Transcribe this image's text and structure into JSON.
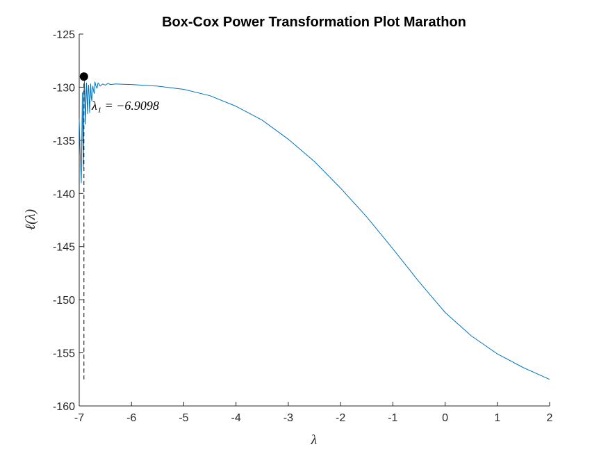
{
  "chart_data": {
    "type": "line",
    "title": "Box-Cox Power Transformation Plot Marathon",
    "xlabel": "λ",
    "ylabel": "ℓ(λ)",
    "xlim": [
      -7,
      2
    ],
    "ylim": [
      -160,
      -125
    ],
    "xticks": [
      -7,
      -6,
      -5,
      -4,
      -3,
      -2,
      -1,
      0,
      1,
      2
    ],
    "yticks": [
      -160,
      -155,
      -150,
      -145,
      -140,
      -135,
      -130,
      -125
    ],
    "xtick_labels": [
      "-7",
      "-6",
      "-5",
      "-4",
      "-3",
      "-2",
      "-1",
      "0",
      "1",
      "2"
    ],
    "ytick_labels": [
      "-160",
      "-155",
      "-150",
      "-145",
      "-140",
      "-135",
      "-130",
      "-125"
    ],
    "grid": false,
    "series": [
      {
        "color": "#0072BD",
        "x": [
          -7.0,
          -6.98,
          -6.96,
          -6.95,
          -6.94,
          -6.93,
          -6.92,
          -6.91,
          -6.9,
          -6.89,
          -6.88,
          -6.87,
          -6.86,
          -6.85,
          -6.84,
          -6.83,
          -6.82,
          -6.81,
          -6.8,
          -6.78,
          -6.77,
          -6.76,
          -6.75,
          -6.74,
          -6.72,
          -6.71,
          -6.7,
          -6.68,
          -6.66,
          -6.64,
          -6.62,
          -6.6,
          -6.55,
          -6.5,
          -6.45,
          -6.4,
          -6.3,
          -6.2,
          -6.0,
          -5.5,
          -5.0,
          -4.5,
          -4.0,
          -3.5,
          -3.0,
          -2.5,
          -2.0,
          -1.5,
          -1.0,
          -0.5,
          0.0,
          0.5,
          1.0,
          1.5,
          2.0
        ],
        "y": [
          -133.0,
          -136.5,
          -139.0,
          -134.5,
          -130.5,
          -135.0,
          -137.5,
          -130.5,
          -129.4,
          -131.8,
          -133.5,
          -130.7,
          -129.6,
          -131.3,
          -132.5,
          -130.4,
          -129.8,
          -131.0,
          -132.4,
          -129.7,
          -130.9,
          -131.3,
          -130.3,
          -129.9,
          -130.5,
          -130.6,
          -129.5,
          -129.9,
          -130.1,
          -129.6,
          -129.7,
          -129.9,
          -129.7,
          -129.8,
          -129.65,
          -129.75,
          -129.7,
          -129.72,
          -129.75,
          -129.9,
          -130.2,
          -130.8,
          -131.8,
          -133.1,
          -134.9,
          -137.0,
          -139.5,
          -142.2,
          -145.2,
          -148.3,
          -151.2,
          -153.4,
          -155.1,
          -156.4,
          -157.5
        ]
      }
    ],
    "optimum": {
      "lambda": -6.9098,
      "loglik": -129.0
    },
    "annotation": "λ₁ = −6.9098"
  }
}
